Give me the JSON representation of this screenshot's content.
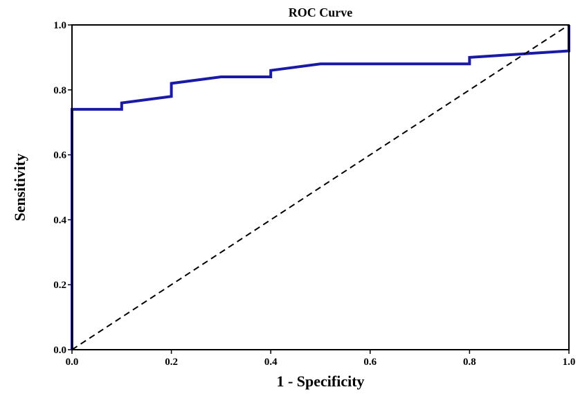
{
  "chart_data": {
    "type": "line",
    "title": "ROC Curve",
    "xlabel": "1 - Specificity",
    "ylabel": "Sensitivity",
    "xlim": [
      0.0,
      1.0
    ],
    "ylim": [
      0.0,
      1.0
    ],
    "x_ticks": [
      "0.0",
      "0.2",
      "0.4",
      "0.6",
      "0.8",
      "1.0"
    ],
    "y_ticks": [
      "0.0",
      "0.2",
      "0.4",
      "0.6",
      "0.8",
      "1.0"
    ],
    "grid": false,
    "legend": "none",
    "series": [
      {
        "style": "solid",
        "color": "#1a1aa6",
        "x": [
          0.0,
          0.0,
          0.1,
          0.1,
          0.2,
          0.2,
          0.3,
          0.4,
          0.4,
          0.5,
          0.8,
          0.8,
          1.0,
          1.0
        ],
        "y": [
          0.0,
          0.74,
          0.74,
          0.76,
          0.78,
          0.82,
          0.84,
          0.84,
          0.86,
          0.88,
          0.88,
          0.9,
          0.92,
          1.0
        ]
      },
      {
        "style": "dashed",
        "color": "#000000",
        "x": [
          0.0,
          1.0
        ],
        "y": [
          0.0,
          1.0
        ]
      }
    ]
  }
}
